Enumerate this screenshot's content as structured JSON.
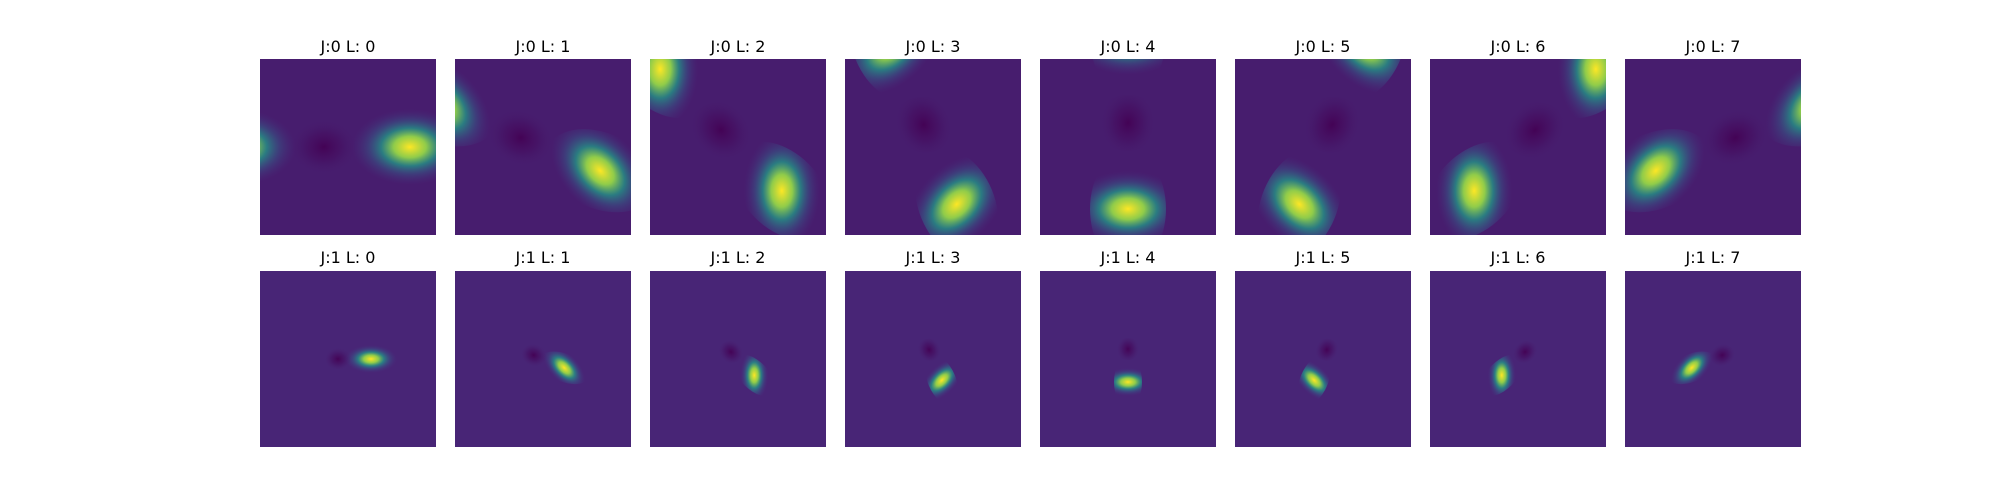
{
  "chart_data": {
    "type": "heatmap",
    "colormap": "viridis",
    "axes_visible": false,
    "grid": false,
    "rows": [
      {
        "scale": 0,
        "panels": [
          {
            "title": "J:0 L: 0",
            "orientation": 0
          },
          {
            "title": "J:0 L: 1",
            "orientation": 1
          },
          {
            "title": "J:0 L: 2",
            "orientation": 2
          },
          {
            "title": "J:0 L: 3",
            "orientation": 3
          },
          {
            "title": "J:0 L: 4",
            "orientation": 4
          },
          {
            "title": "J:0 L: 5",
            "orientation": 5
          },
          {
            "title": "J:0 L: 6",
            "orientation": 6
          },
          {
            "title": "J:0 L: 7",
            "orientation": 7
          }
        ]
      },
      {
        "scale": 1,
        "panels": [
          {
            "title": "J:1 L: 0",
            "orientation": 0
          },
          {
            "title": "J:1 L: 1",
            "orientation": 1
          },
          {
            "title": "J:1 L: 2",
            "orientation": 2
          },
          {
            "title": "J:1 L: 3",
            "orientation": 3
          },
          {
            "title": "J:1 L: 4",
            "orientation": 4
          },
          {
            "title": "J:1 L: 5",
            "orientation": 5
          },
          {
            "title": "J:1 L: 6",
            "orientation": 6
          },
          {
            "title": "J:1 L: 7",
            "orientation": 7
          }
        ]
      }
    ]
  }
}
